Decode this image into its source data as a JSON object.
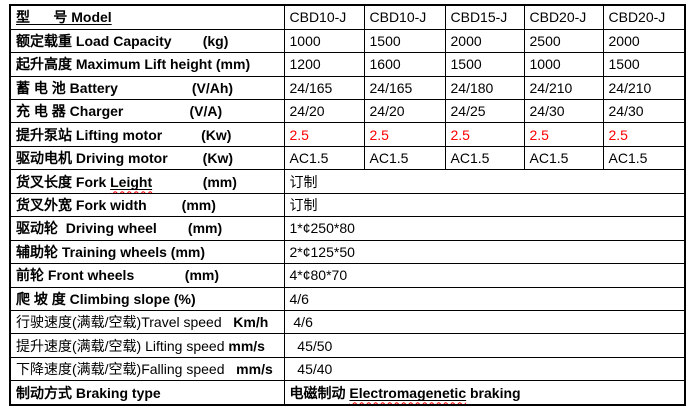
{
  "page": {
    "background": "#ffffff"
  },
  "table": {
    "grid_color": "#000000",
    "accent_red": "#ff0000",
    "wavy_underline_color": "#ff0000",
    "model_count": 5,
    "rows": [
      {
        "label": [
          {
            "text": "型      号 Model",
            "style": "bold-underline"
          }
        ],
        "values": [
          "CBD10-J",
          "CBD10-J",
          "CBD15-J",
          "CBD20-J",
          "CBD20-J"
        ]
      },
      {
        "label": [
          {
            "text": "额定载重 Load Capacity        (kg)",
            "style": "bold"
          }
        ],
        "values": [
          "1000",
          "1500",
          "2000",
          "2500",
          "2000"
        ]
      },
      {
        "label": [
          {
            "text": "起升高度 Maximum Lift height (mm)",
            "style": "bold"
          }
        ],
        "values": [
          "1200",
          "1600",
          "1500",
          "1000",
          "1500"
        ]
      },
      {
        "label": [
          {
            "text": "蓄 电 池 Battery                   (V/Ah)",
            "style": "bold"
          }
        ],
        "values": [
          "24/165",
          "24/165",
          "24/180",
          "24/210",
          "24/210"
        ]
      },
      {
        "label": [
          {
            "text": "充 电 器 Charger                 (V/A)",
            "style": "bold"
          }
        ],
        "values": [
          "24/20",
          "24/20",
          "24/25",
          "24/30",
          "24/30"
        ]
      },
      {
        "label": [
          {
            "text": "提升泵站 Lifting motor          (Kw)",
            "style": "bold"
          }
        ],
        "values": [
          "2.5",
          "2.5",
          "2.5",
          "2.5",
          "2.5"
        ],
        "red": true
      },
      {
        "label": [
          {
            "text": "驱动电机 Driving motor         (Kw)",
            "style": "bold"
          }
        ],
        "values": [
          "AC1.5",
          "AC1.5",
          "AC1.5",
          "AC1.5",
          "AC1.5"
        ]
      },
      {
        "label": [
          {
            "text": "货叉长度 Fork ",
            "style": "bold"
          },
          {
            "text": "Leight",
            "style": "bold-underline-wavy"
          },
          {
            "text": "             (mm)",
            "style": "bold"
          }
        ],
        "merged_value": [
          {
            "text": "订制",
            "style": "regular"
          }
        ]
      },
      {
        "label": [
          {
            "text": "货叉外宽 Fork width         (mm)",
            "style": "bold"
          }
        ],
        "merged_value": [
          {
            "text": "订制",
            "style": "regular"
          }
        ]
      },
      {
        "label": [
          {
            "text": "驱动轮  Driving wheel        (mm)",
            "style": "bold"
          }
        ],
        "merged_value": [
          {
            "text": "1*¢250*80",
            "style": "regular"
          }
        ]
      },
      {
        "label": [
          {
            "text": "辅助轮 Training wheels (mm)",
            "style": "bold"
          }
        ],
        "merged_value": [
          {
            "text": "2*¢125*50",
            "style": "regular"
          }
        ]
      },
      {
        "label": [
          {
            "text": "前轮 Front wheels             (mm)",
            "style": "bold"
          }
        ],
        "merged_value": [
          {
            "text": "4*¢80*70",
            "style": "regular"
          }
        ]
      },
      {
        "label": [
          {
            "text": "爬 坡 度 Climbing slope (%)",
            "style": "bold"
          }
        ],
        "merged_value": [
          {
            "text": "4/6",
            "style": "regular"
          }
        ]
      },
      {
        "label": [
          {
            "text": "行驶速度(满载/空载)Travel speed   ",
            "style": "regular"
          },
          {
            "text": "Km/h",
            "style": "bold"
          }
        ],
        "merged_value": [
          {
            "text": " 4/6",
            "style": "regular"
          }
        ]
      },
      {
        "label": [
          {
            "text": "提升速度(满载/空载) Lifting speed ",
            "style": "regular"
          },
          {
            "text": "mm/s",
            "style": "bold"
          }
        ],
        "merged_value": [
          {
            "text": "  45/50",
            "style": "regular"
          }
        ]
      },
      {
        "label": [
          {
            "text": "下降速度(满载/空载)Falling speed   ",
            "style": "regular"
          },
          {
            "text": "mm/s",
            "style": "bold"
          }
        ],
        "merged_value": [
          {
            "text": "  45/40",
            "style": "regular"
          }
        ]
      },
      {
        "label": [
          {
            "text": "制动方式 Braking type",
            "style": "bold"
          }
        ],
        "merged_value": [
          {
            "text": "电磁制动 ",
            "style": "bold"
          },
          {
            "text": "Electromagenetic",
            "style": "bold-underline-wavy"
          },
          {
            "text": " braking",
            "style": "bold"
          }
        ]
      }
    ]
  }
}
